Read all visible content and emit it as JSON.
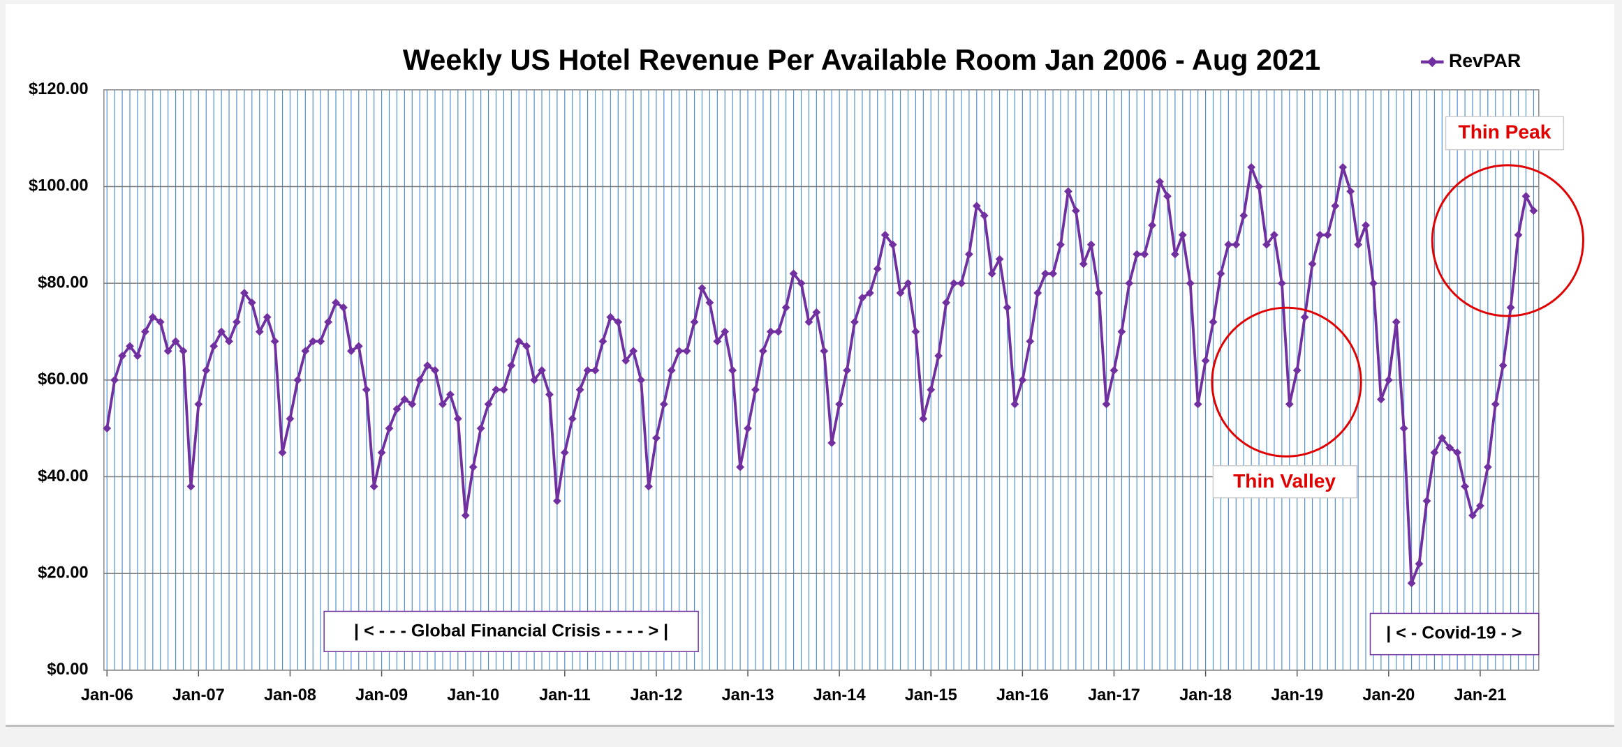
{
  "chart_data": {
    "type": "line",
    "title": "Weekly US Hotel Revenue Per Available Room Jan 2006 - Aug 2021",
    "x": [
      "2006-01",
      "2006-02",
      "2006-03",
      "2006-04",
      "2006-05",
      "2006-06",
      "2006-07",
      "2006-08",
      "2006-09",
      "2006-10",
      "2006-11",
      "2006-12",
      "2007-01",
      "2007-02",
      "2007-03",
      "2007-04",
      "2007-05",
      "2007-06",
      "2007-07",
      "2007-08",
      "2007-09",
      "2007-10",
      "2007-11",
      "2007-12",
      "2008-01",
      "2008-02",
      "2008-03",
      "2008-04",
      "2008-05",
      "2008-06",
      "2008-07",
      "2008-08",
      "2008-09",
      "2008-10",
      "2008-11",
      "2008-12",
      "2009-01",
      "2009-02",
      "2009-03",
      "2009-04",
      "2009-05",
      "2009-06",
      "2009-07",
      "2009-08",
      "2009-09",
      "2009-10",
      "2009-11",
      "2009-12",
      "2010-01",
      "2010-02",
      "2010-03",
      "2010-04",
      "2010-05",
      "2010-06",
      "2010-07",
      "2010-08",
      "2010-09",
      "2010-10",
      "2010-11",
      "2010-12",
      "2011-01",
      "2011-02",
      "2011-03",
      "2011-04",
      "2011-05",
      "2011-06",
      "2011-07",
      "2011-08",
      "2011-09",
      "2011-10",
      "2011-11",
      "2011-12",
      "2012-01",
      "2012-02",
      "2012-03",
      "2012-04",
      "2012-05",
      "2012-06",
      "2012-07",
      "2012-08",
      "2012-09",
      "2012-10",
      "2012-11",
      "2012-12",
      "2013-01",
      "2013-02",
      "2013-03",
      "2013-04",
      "2013-05",
      "2013-06",
      "2013-07",
      "2013-08",
      "2013-09",
      "2013-10",
      "2013-11",
      "2013-12",
      "2014-01",
      "2014-02",
      "2014-03",
      "2014-04",
      "2014-05",
      "2014-06",
      "2014-07",
      "2014-08",
      "2014-09",
      "2014-10",
      "2014-11",
      "2014-12",
      "2015-01",
      "2015-02",
      "2015-03",
      "2015-04",
      "2015-05",
      "2015-06",
      "2015-07",
      "2015-08",
      "2015-09",
      "2015-10",
      "2015-11",
      "2015-12",
      "2016-01",
      "2016-02",
      "2016-03",
      "2016-04",
      "2016-05",
      "2016-06",
      "2016-07",
      "2016-08",
      "2016-09",
      "2016-10",
      "2016-11",
      "2016-12",
      "2017-01",
      "2017-02",
      "2017-03",
      "2017-04",
      "2017-05",
      "2017-06",
      "2017-07",
      "2017-08",
      "2017-09",
      "2017-10",
      "2017-11",
      "2017-12",
      "2018-01",
      "2018-02",
      "2018-03",
      "2018-04",
      "2018-05",
      "2018-06",
      "2018-07",
      "2018-08",
      "2018-09",
      "2018-10",
      "2018-11",
      "2018-12",
      "2019-01",
      "2019-02",
      "2019-03",
      "2019-04",
      "2019-05",
      "2019-06",
      "2019-07",
      "2019-08",
      "2019-09",
      "2019-10",
      "2019-11",
      "2019-12",
      "2020-01",
      "2020-02",
      "2020-03",
      "2020-04",
      "2020-05",
      "2020-06",
      "2020-07",
      "2020-08",
      "2020-09",
      "2020-10",
      "2020-11",
      "2020-12",
      "2021-01",
      "2021-02",
      "2021-03",
      "2021-04",
      "2021-05",
      "2021-06",
      "2021-07",
      "2021-08"
    ],
    "series": [
      {
        "name": "RevPAR",
        "color": "#7030a0",
        "values": [
          50,
          60,
          65,
          67,
          65,
          70,
          73,
          72,
          66,
          68,
          66,
          38,
          55,
          62,
          67,
          70,
          68,
          72,
          78,
          76,
          70,
          73,
          68,
          45,
          52,
          60,
          66,
          68,
          68,
          72,
          76,
          75,
          66,
          67,
          58,
          38,
          45,
          50,
          54,
          56,
          55,
          60,
          63,
          62,
          55,
          57,
          52,
          32,
          42,
          50,
          55,
          58,
          58,
          63,
          68,
          67,
          60,
          62,
          57,
          35,
          45,
          52,
          58,
          62,
          62,
          68,
          73,
          72,
          64,
          66,
          60,
          38,
          48,
          55,
          62,
          66,
          66,
          72,
          79,
          76,
          68,
          70,
          62,
          42,
          50,
          58,
          66,
          70,
          70,
          75,
          82,
          80,
          72,
          74,
          66,
          47,
          55,
          62,
          72,
          77,
          78,
          83,
          90,
          88,
          78,
          80,
          70,
          52,
          58,
          65,
          76,
          80,
          80,
          86,
          96,
          94,
          82,
          85,
          75,
          55,
          60,
          68,
          78,
          82,
          82,
          88,
          99,
          95,
          84,
          88,
          78,
          55,
          62,
          70,
          80,
          86,
          86,
          92,
          101,
          98,
          86,
          90,
          80,
          55,
          64,
          72,
          82,
          88,
          88,
          94,
          104,
          100,
          88,
          90,
          80,
          55,
          62,
          73,
          84,
          90,
          90,
          96,
          104,
          99,
          88,
          92,
          80,
          56,
          60,
          72,
          50,
          18,
          22,
          35,
          45,
          48,
          46,
          45,
          38,
          32,
          34,
          42,
          55,
          63,
          75,
          90,
          98,
          95
        ]
      }
    ],
    "xlim": [
      "2006-01",
      "2021-08"
    ],
    "xticks": [
      {
        "value": "2006-01",
        "label": "Jan-06"
      },
      {
        "value": "2007-01",
        "label": "Jan-07"
      },
      {
        "value": "2008-01",
        "label": "Jan-08"
      },
      {
        "value": "2009-01",
        "label": "Jan-09"
      },
      {
        "value": "2010-01",
        "label": "Jan-10"
      },
      {
        "value": "2011-01",
        "label": "Jan-11"
      },
      {
        "value": "2012-01",
        "label": "Jan-12"
      },
      {
        "value": "2013-01",
        "label": "Jan-13"
      },
      {
        "value": "2014-01",
        "label": "Jan-14"
      },
      {
        "value": "2015-01",
        "label": "Jan-15"
      },
      {
        "value": "2016-01",
        "label": "Jan-16"
      },
      {
        "value": "2017-01",
        "label": "Jan-17"
      },
      {
        "value": "2018-01",
        "label": "Jan-18"
      },
      {
        "value": "2019-01",
        "label": "Jan-19"
      },
      {
        "value": "2020-01",
        "label": "Jan-20"
      },
      {
        "value": "2021-01",
        "label": "Jan-21"
      }
    ],
    "ylim": [
      0,
      120
    ],
    "yticks": [
      {
        "value": 0,
        "label": "$0.00"
      },
      {
        "value": 20,
        "label": "$20.00"
      },
      {
        "value": 40,
        "label": "$40.00"
      },
      {
        "value": 60,
        "label": "$60.00"
      },
      {
        "value": 80,
        "label": "$80.00"
      },
      {
        "value": 100,
        "label": "$100.00"
      },
      {
        "value": 120,
        "label": "$120.00"
      }
    ],
    "grid": true,
    "legend": "top-right",
    "annotations": [
      "Thin Peak",
      "Thin Valley",
      "| < - - - Global Financial Crisis - - - - > |",
      "| < - Covid-19 - >"
    ]
  }
}
